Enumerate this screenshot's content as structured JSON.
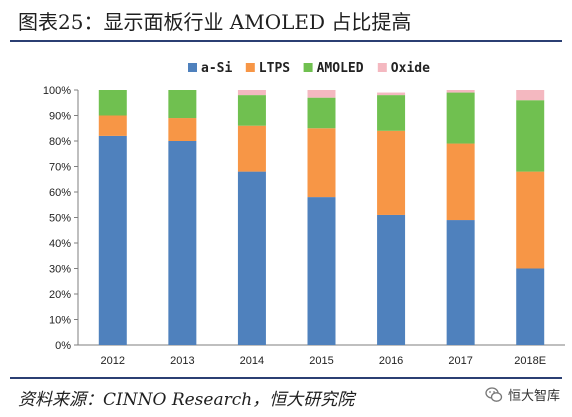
{
  "page": {
    "title": "图表25：显示面板行业 AMOLED 占比提高",
    "source": "资料来源：CINNO Research，恒大研究院",
    "watermark": "恒大智库",
    "watermark_icon": "wechat-icon"
  },
  "chart_data": {
    "type": "bar",
    "stacked": true,
    "categories": [
      "2012",
      "2013",
      "2014",
      "2015",
      "2016",
      "2017",
      "2018E"
    ],
    "series": [
      {
        "name": "a-Si",
        "color": "#4f81bd",
        "values": [
          82,
          80,
          68,
          58,
          51,
          49,
          30
        ]
      },
      {
        "name": "LTPS",
        "color": "#f79646",
        "values": [
          8,
          9,
          18,
          27,
          33,
          30,
          38
        ]
      },
      {
        "name": "AMOLED",
        "color": "#70c050",
        "values": [
          10,
          11,
          12,
          12,
          14,
          20,
          28
        ]
      },
      {
        "name": "Oxide",
        "color": "#f4b8c0",
        "values": [
          0,
          0,
          2,
          3,
          1,
          1,
          4
        ]
      }
    ],
    "yticks": [
      "0%",
      "10%",
      "20%",
      "30%",
      "40%",
      "50%",
      "60%",
      "70%",
      "80%",
      "90%",
      "100%"
    ],
    "ylim": [
      0,
      100
    ],
    "grid": false,
    "legend": "top"
  }
}
